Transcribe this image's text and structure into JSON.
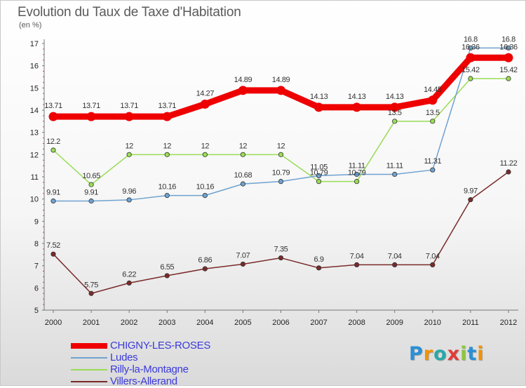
{
  "title": "Evolution du Taux de Taxe d'Habitation",
  "unit": "(en %)",
  "logo": {
    "text": "Proxiti",
    "letters": [
      "P",
      "r",
      "o",
      "x",
      "i",
      "t",
      "i"
    ],
    "colors": [
      "#2a8fd6",
      "#f39200",
      "#2aa8a8",
      "#e03a3a",
      "#8cc63f",
      "#2a8fd6",
      "#f39200"
    ]
  },
  "chart_data": {
    "type": "line",
    "title": "Evolution du Taux de Taxe d'Habitation",
    "ylabel": "(en %)",
    "xlabel": "",
    "x": [
      "2000",
      "2001",
      "2002",
      "2003",
      "2004",
      "2005",
      "2006",
      "2007",
      "2008",
      "2009",
      "2010",
      "2011",
      "2012"
    ],
    "ylim": [
      5,
      17
    ],
    "yticks": [
      "5",
      "6",
      "7",
      "8",
      "9",
      "10",
      "11",
      "12",
      "13",
      "14",
      "15",
      "16",
      "17"
    ],
    "grid": false,
    "legend_position": "bottom-left",
    "series": [
      {
        "name": "CHIGNY-LES-ROSES",
        "color": "#ee0000",
        "values": [
          13.71,
          13.71,
          13.71,
          13.71,
          14.27,
          14.89,
          14.89,
          14.13,
          14.13,
          14.13,
          14.45,
          16.36,
          16.36
        ],
        "labels": [
          "13.71",
          "13.71",
          "13.71",
          "13.71",
          "14.27",
          "14.89",
          "14.89",
          "14.13",
          "14.13",
          "14.13",
          "14.45",
          "16.36",
          "16.36"
        ]
      },
      {
        "name": "Ludes",
        "color": "#6fa2d0",
        "values": [
          9.91,
          9.91,
          9.96,
          10.16,
          10.16,
          10.68,
          10.79,
          11.05,
          11.11,
          11.11,
          11.31,
          16.8,
          16.8
        ],
        "labels": [
          "9.91",
          "9.91",
          "9.96",
          "10.16",
          "10.16",
          "10.68",
          "10.79",
          "11.05",
          "11.11",
          "11.11",
          "11.31",
          "16.8",
          "16.8"
        ]
      },
      {
        "name": "Rilly-la-Montagne",
        "color": "#99dd55",
        "values": [
          12.2,
          10.65,
          12,
          12,
          12,
          12,
          12,
          10.79,
          10.79,
          13.5,
          13.5,
          15.42,
          15.42
        ],
        "labels": [
          "12.2",
          "10.65",
          "12",
          "12",
          "12",
          "12",
          "12",
          "10.79",
          "10.79",
          "13.5",
          "13.5",
          "15.42",
          "15.42"
        ]
      },
      {
        "name": "Villers-Allerand",
        "color": "#7a2a2a",
        "values": [
          7.52,
          5.75,
          6.22,
          6.55,
          6.86,
          7.07,
          7.35,
          6.9,
          7.04,
          7.04,
          7.04,
          9.97,
          11.22
        ],
        "labels": [
          "7.52",
          "5.75",
          "6.22",
          "6.55",
          "6.86",
          "7.07",
          "7.35",
          "6.9",
          "7.04",
          "7.04",
          "7.04",
          "9.97",
          "11.22"
        ]
      }
    ]
  }
}
